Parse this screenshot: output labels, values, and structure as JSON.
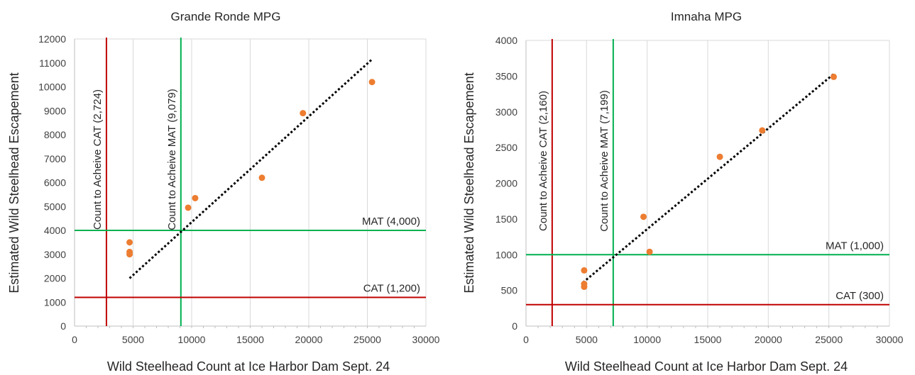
{
  "chart_data": [
    {
      "type": "scatter",
      "title": "Grande Ronde MPG",
      "xlabel": "Wild Steelhead Count at Ice Harbor Dam Sept. 24",
      "ylabel": "Estimated Wild Steelhead Escapement",
      "xlim": [
        0,
        30000
      ],
      "ylim": [
        0,
        12000
      ],
      "x_ticks": [
        0,
        5000,
        10000,
        15000,
        20000,
        25000,
        30000
      ],
      "y_ticks": [
        0,
        1000,
        2000,
        3000,
        4000,
        5000,
        6000,
        7000,
        8000,
        9000,
        10000,
        11000,
        12000
      ],
      "grid": "vertical",
      "series": [
        {
          "marker_color": "#ED7D31",
          "x": [
            4700,
            4700,
            4700,
            9700,
            10300,
            16000,
            19500,
            25400
          ],
          "y": [
            3500,
            3100,
            3000,
            4950,
            5350,
            6200,
            8900,
            10200
          ]
        }
      ],
      "trendline": {
        "x": [
          4700,
          25400
        ],
        "y": [
          2000,
          11150
        ],
        "color": "#000000",
        "style": "dotted"
      },
      "reference_lines": [
        {
          "orientation": "vertical",
          "value": 2724,
          "label": "Count to Acheive CAT (2,724)",
          "color": "#C00000"
        },
        {
          "orientation": "vertical",
          "value": 9079,
          "label": "Count to Acheive MAT (9,079)",
          "color": "#00B050"
        },
        {
          "orientation": "horizontal",
          "value": 4000,
          "label": "MAT (4,000)",
          "color": "#00B050"
        },
        {
          "orientation": "horizontal",
          "value": 1200,
          "label": "CAT (1,200)",
          "color": "#C00000"
        }
      ]
    },
    {
      "type": "scatter",
      "title": "Imnaha MPG",
      "xlabel": "Wild Steelhead Count at Ice Harbor Dam Sept. 24",
      "ylabel": "Estimated Wild Steelhead Escapement",
      "xlim": [
        0,
        30000
      ],
      "ylim": [
        0,
        4000
      ],
      "x_ticks": [
        0,
        5000,
        10000,
        15000,
        20000,
        25000,
        30000
      ],
      "y_ticks": [
        0,
        500,
        1000,
        1500,
        2000,
        2500,
        3000,
        3500,
        4000
      ],
      "grid": "vertical",
      "series": [
        {
          "marker_color": "#ED7D31",
          "x": [
            4800,
            4800,
            4800,
            9700,
            10200,
            16000,
            19500,
            25400
          ],
          "y": [
            780,
            590,
            550,
            1530,
            1040,
            2370,
            2740,
            3490
          ]
        }
      ],
      "trendline": {
        "x": [
          4700,
          25400
        ],
        "y": [
          610,
          3530
        ],
        "color": "#000000",
        "style": "dotted"
      },
      "reference_lines": [
        {
          "orientation": "vertical",
          "value": 2160,
          "label": "Count to Acheive CAT  (2,160)",
          "color": "#C00000"
        },
        {
          "orientation": "vertical",
          "value": 7199,
          "label": "Count to Acheive MAT (7,199)",
          "color": "#00B050"
        },
        {
          "orientation": "horizontal",
          "value": 1000,
          "label": "MAT (1,000)",
          "color": "#00B050"
        },
        {
          "orientation": "horizontal",
          "value": 300,
          "label": "CAT (300)",
          "color": "#C00000"
        }
      ]
    }
  ]
}
